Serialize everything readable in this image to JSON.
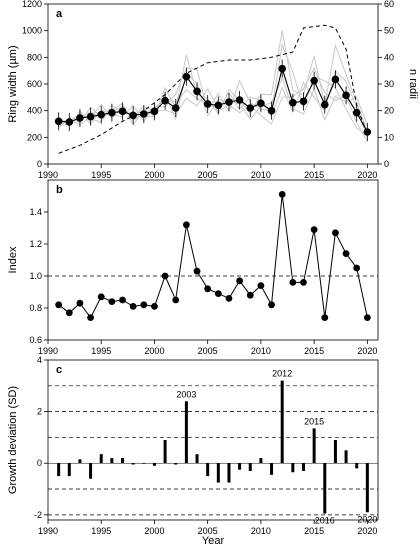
{
  "xlabel": "Year",
  "x_ticks": [
    1990,
    1995,
    2000,
    2005,
    2010,
    2015,
    2020
  ],
  "chart_data": [
    {
      "panel_label": "a",
      "type": "line",
      "ylabel": "Ring width (µm)",
      "y2label": "n radii",
      "xlim": [
        1990,
        2021
      ],
      "ylim": [
        0,
        1200
      ],
      "y_ticks": [
        0,
        200,
        400,
        600,
        800,
        1000,
        1200
      ],
      "y2lim": [
        0,
        60
      ],
      "y2_ticks": [
        0,
        10,
        20,
        30,
        40,
        50,
        60
      ],
      "years": [
        1991,
        1992,
        1993,
        1994,
        1995,
        1996,
        1997,
        1998,
        1999,
        2000,
        2001,
        2002,
        2003,
        2004,
        2005,
        2006,
        2007,
        2008,
        2009,
        2010,
        2011,
        2012,
        2013,
        2014,
        2015,
        2016,
        2017,
        2018,
        2019,
        2020
      ],
      "mean_ring_width": [
        320,
        315,
        345,
        355,
        370,
        385,
        395,
        365,
        375,
        395,
        475,
        420,
        655,
        545,
        450,
        440,
        465,
        480,
        420,
        455,
        400,
        715,
        460,
        470,
        625,
        445,
        635,
        515,
        385,
        240
      ],
      "n_radii_years": [
        1991,
        1993,
        1995,
        1997,
        1999,
        2001,
        2003,
        2005,
        2007,
        2009,
        2011,
        2013,
        2014,
        2016,
        2017,
        2018,
        2019,
        2020
      ],
      "n_radii": [
        4,
        7,
        11,
        16,
        20,
        26,
        34,
        38,
        39,
        39,
        40,
        42,
        51,
        52,
        51,
        43,
        22,
        11
      ],
      "individual_series_color": "#c8c8c8"
    },
    {
      "panel_label": "b",
      "type": "line",
      "ylabel": "Index",
      "xlim": [
        1990,
        2021
      ],
      "ylim": [
        0.6,
        1.6
      ],
      "y_ticks": [
        0.6,
        0.8,
        1.0,
        1.2,
        1.4
      ],
      "reference_line": 1.0,
      "years": [
        1991,
        1992,
        1993,
        1994,
        1995,
        1996,
        1997,
        1998,
        1999,
        2000,
        2001,
        2002,
        2003,
        2004,
        2005,
        2006,
        2007,
        2008,
        2009,
        2010,
        2011,
        2012,
        2013,
        2014,
        2015,
        2016,
        2017,
        2018,
        2019,
        2020
      ],
      "values": [
        0.82,
        0.77,
        0.83,
        0.74,
        0.87,
        0.84,
        0.85,
        0.81,
        0.82,
        0.81,
        1.0,
        0.85,
        1.32,
        1.03,
        0.92,
        0.89,
        0.86,
        0.97,
        0.88,
        0.94,
        0.82,
        1.51,
        0.96,
        0.96,
        1.29,
        0.74,
        1.27,
        1.14,
        1.05,
        0.74
      ]
    },
    {
      "panel_label": "c",
      "type": "bar",
      "ylabel": "Growth deviation (SD)",
      "xlim": [
        1990,
        2021
      ],
      "ylim": [
        -2.2,
        4
      ],
      "y_ticks": [
        -2,
        0,
        2,
        4
      ],
      "dashed_lines": [
        -2,
        -1,
        1,
        2,
        3
      ],
      "years": [
        1991,
        1992,
        1993,
        1994,
        1995,
        1996,
        1997,
        1998,
        1999,
        2000,
        2001,
        2002,
        2003,
        2004,
        2005,
        2006,
        2007,
        2008,
        2009,
        2010,
        2011,
        2012,
        2013,
        2014,
        2015,
        2016,
        2017,
        2018,
        2019,
        2020
      ],
      "values": [
        -0.5,
        -0.5,
        0.15,
        -0.6,
        0.35,
        0.2,
        0.2,
        -0.05,
        -0.02,
        -0.1,
        0.9,
        -0.05,
        2.4,
        0.35,
        -0.5,
        -0.75,
        -0.75,
        -0.25,
        -0.3,
        0.2,
        -0.45,
        3.2,
        -0.35,
        -0.3,
        1.35,
        -1.95,
        0.9,
        0.5,
        -0.2,
        -1.9
      ],
      "annotations": [
        {
          "year": 2003,
          "text": "2003"
        },
        {
          "year": 2012,
          "text": "2012"
        },
        {
          "year": 2015,
          "text": "2015"
        },
        {
          "year": 2016,
          "text": "2016"
        },
        {
          "year": 2020,
          "text": "2020"
        }
      ]
    }
  ]
}
